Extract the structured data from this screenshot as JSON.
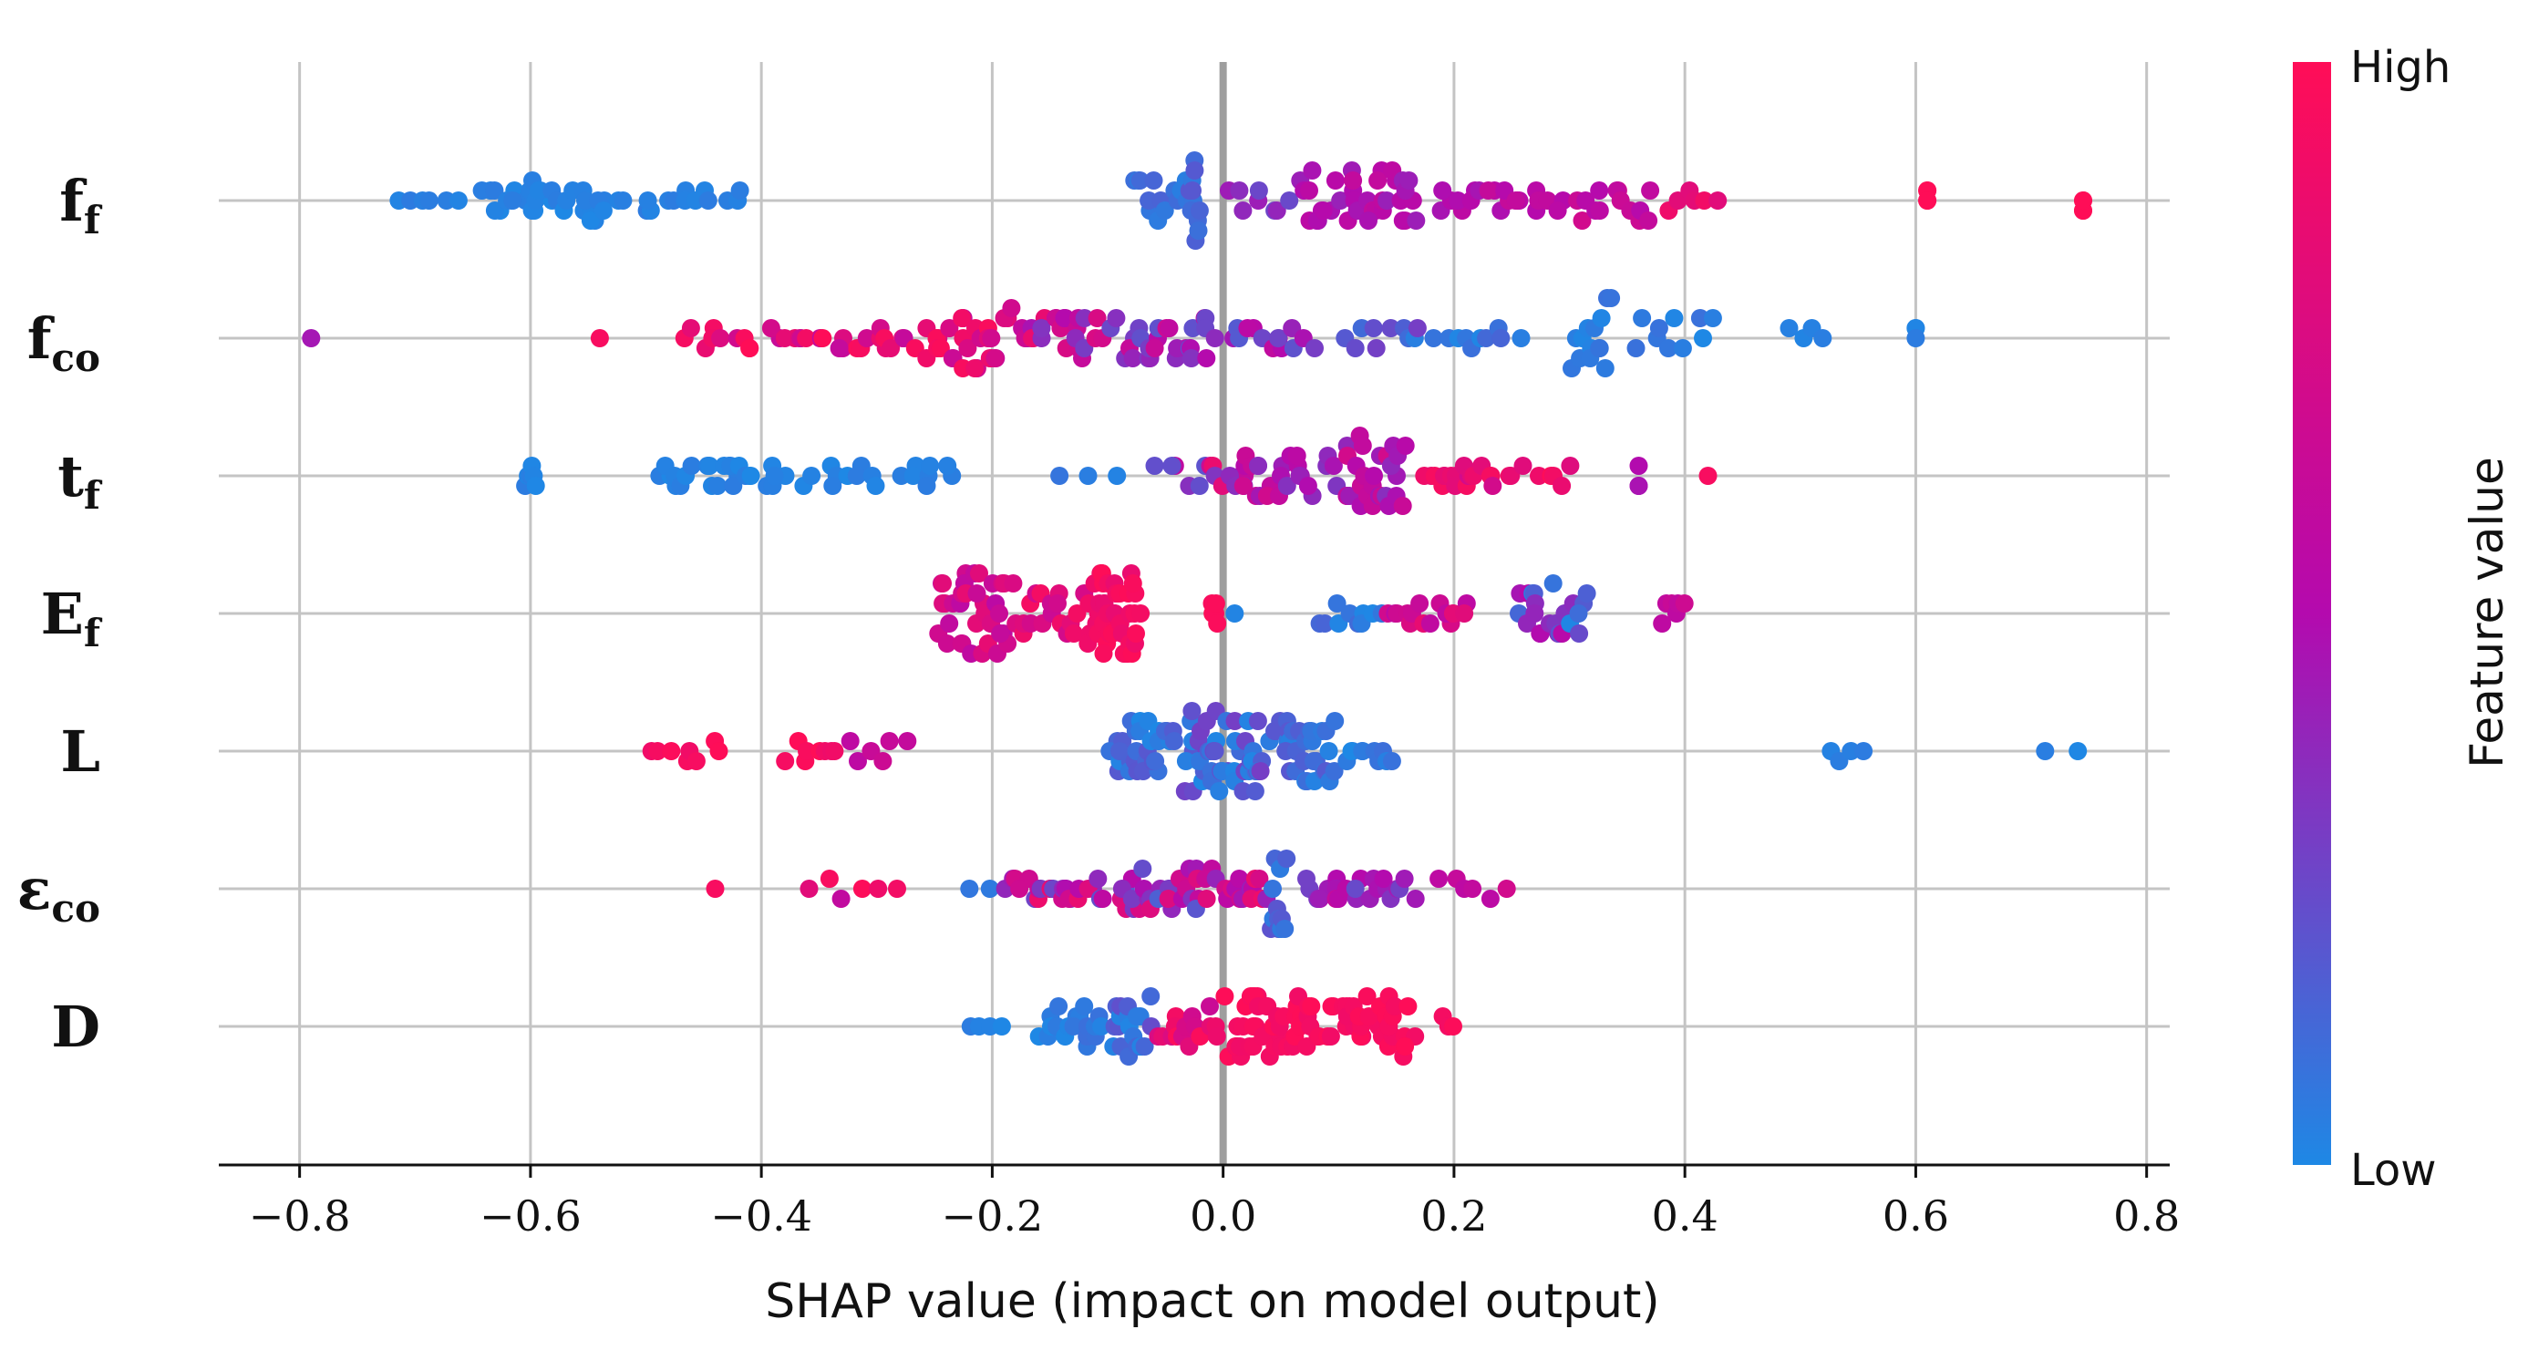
{
  "chart_data": {
    "type": "scatter",
    "subtype": "shap-beeswarm",
    "xlabel": "SHAP value (impact on model output)",
    "xlim": [
      -0.87,
      0.82
    ],
    "xticks": [
      -0.8,
      -0.6,
      -0.4,
      -0.2,
      0.0,
      0.2,
      0.4,
      0.6,
      0.8
    ],
    "xtick_labels": [
      "−0.8",
      "−0.6",
      "−0.4",
      "−0.2",
      "0.0",
      "0.2",
      "0.4",
      "0.6",
      "0.8"
    ],
    "grid": true,
    "colorbar": {
      "title": "Feature value",
      "high_label": "High",
      "low_label": "Low",
      "low_color": "#1E88E5",
      "mid_color": "#B40AAE",
      "high_color": "#FF0D57"
    },
    "features": [
      {
        "name": "ff",
        "base": "f",
        "sub": "f",
        "clusters": [
          {
            "x": [
              -0.72,
              -0.66
            ],
            "n": 6,
            "spread": 0.2,
            "c": [
              0,
              0.05
            ]
          },
          {
            "x": [
              -0.65,
              -0.52
            ],
            "n": 34,
            "spread": 1.0,
            "c": [
              0,
              0.05
            ]
          },
          {
            "x": [
              -0.52,
              -0.41
            ],
            "n": 14,
            "spread": 0.4,
            "c": [
              0,
              0.05
            ]
          },
          {
            "x": [
              -0.08,
              -0.02
            ],
            "n": 16,
            "spread": 1.0,
            "c": [
              0.02,
              0.15
            ]
          },
          {
            "x": [
              -0.03,
              -0.02
            ],
            "n": 10,
            "spread": 1.8,
            "c": [
              0.05,
              0.2
            ]
          },
          {
            "x": [
              0.0,
              0.06
            ],
            "n": 8,
            "spread": 0.4,
            "c": [
              0.2,
              0.45
            ]
          },
          {
            "x": [
              0.06,
              0.18
            ],
            "n": 38,
            "spread": 1.1,
            "c": [
              0.4,
              0.6
            ]
          },
          {
            "x": [
              0.18,
              0.3
            ],
            "n": 22,
            "spread": 0.6,
            "c": [
              0.45,
              0.62
            ]
          },
          {
            "x": [
              0.3,
              0.38
            ],
            "n": 14,
            "spread": 0.9,
            "c": [
              0.5,
              0.7
            ]
          },
          {
            "x": [
              0.38,
              0.43
            ],
            "n": 6,
            "spread": 0.4,
            "c": [
              0.8,
              1.0
            ]
          },
          {
            "x": [
              0.61,
              0.61
            ],
            "n": 4,
            "spread": 0.3,
            "c": [
              1,
              1
            ]
          },
          {
            "x": [
              0.745,
              0.745
            ],
            "n": 4,
            "spread": 0.3,
            "c": [
              1,
              1
            ]
          }
        ]
      },
      {
        "name": "fco",
        "base": "f",
        "sub": "co",
        "clusters": [
          {
            "x": [
              -0.79,
              -0.79
            ],
            "n": 1,
            "spread": 0,
            "c": [
              0.45,
              0.45
            ]
          },
          {
            "x": [
              -0.54,
              -0.54
            ],
            "n": 1,
            "spread": 0,
            "c": [
              0.95,
              0.95
            ]
          },
          {
            "x": [
              -0.47,
              -0.4
            ],
            "n": 10,
            "spread": 0.3,
            "c": [
              0.6,
              1.0
            ]
          },
          {
            "x": [
              -0.4,
              -0.26
            ],
            "n": 24,
            "spread": 0.5,
            "c": [
              0.55,
              1.0
            ]
          },
          {
            "x": [
              -0.26,
              -0.18
            ],
            "n": 30,
            "spread": 1.2,
            "c": [
              0.6,
              1.0
            ]
          },
          {
            "x": [
              -0.18,
              -0.1
            ],
            "n": 26,
            "spread": 0.9,
            "c": [
              0.3,
              0.9
            ]
          },
          {
            "x": [
              -0.1,
              0.0
            ],
            "n": 28,
            "spread": 1.0,
            "c": [
              0.2,
              0.7
            ]
          },
          {
            "x": [
              0.0,
              0.08
            ],
            "n": 14,
            "spread": 0.5,
            "c": [
              0.15,
              0.6
            ]
          },
          {
            "x": [
              0.1,
              0.18
            ],
            "n": 10,
            "spread": 0.3,
            "c": [
              0.0,
              0.3
            ]
          },
          {
            "x": [
              0.18,
              0.26
            ],
            "n": 10,
            "spread": 0.4,
            "c": [
              0.0,
              0.15
            ]
          },
          {
            "x": [
              0.3,
              0.34
            ],
            "n": 14,
            "spread": 1.6,
            "c": [
              0.0,
              0.1
            ]
          },
          {
            "x": [
              0.35,
              0.43
            ],
            "n": 10,
            "spread": 0.7,
            "c": [
              0.0,
              0.1
            ]
          },
          {
            "x": [
              0.49,
              0.52
            ],
            "n": 4,
            "spread": 0.3,
            "c": [
              0.0,
              0.05
            ]
          },
          {
            "x": [
              0.6,
              0.6
            ],
            "n": 3,
            "spread": 0.4,
            "c": [
              0.0,
              0.05
            ]
          }
        ]
      },
      {
        "name": "tf",
        "base": "t",
        "sub": "f",
        "clusters": [
          {
            "x": [
              -0.605,
              -0.595
            ],
            "n": 7,
            "spread": 0.5,
            "c": [
              0,
              0.05
            ]
          },
          {
            "x": [
              -0.5,
              -0.37
            ],
            "n": 26,
            "spread": 0.6,
            "c": [
              0,
              0.05
            ]
          },
          {
            "x": [
              -0.37,
              -0.22
            ],
            "n": 18,
            "spread": 0.35,
            "c": [
              0,
              0.05
            ]
          },
          {
            "x": [
              -0.15,
              -0.09
            ],
            "n": 3,
            "spread": 0.1,
            "c": [
              0.0,
              0.1
            ]
          },
          {
            "x": [
              -0.06,
              0.04
            ],
            "n": 14,
            "spread": 0.4,
            "c": [
              0.2,
              0.9
            ]
          },
          {
            "x": [
              0.0,
              0.1
            ],
            "n": 26,
            "spread": 1.0,
            "c": [
              0.3,
              0.7
            ]
          },
          {
            "x": [
              0.1,
              0.16
            ],
            "n": 28,
            "spread": 1.8,
            "c": [
              0.35,
              0.7
            ]
          },
          {
            "x": [
              0.17,
              0.24
            ],
            "n": 18,
            "spread": 0.5,
            "c": [
              0.7,
              1.0
            ]
          },
          {
            "x": [
              0.24,
              0.31
            ],
            "n": 8,
            "spread": 0.3,
            "c": [
              0.75,
              1.0
            ]
          },
          {
            "x": [
              0.36,
              0.36
            ],
            "n": 3,
            "spread": 0.3,
            "c": [
              0.45,
              0.5
            ]
          },
          {
            "x": [
              0.42,
              0.42
            ],
            "n": 1,
            "spread": 0,
            "c": [
              0.95,
              0.95
            ]
          }
        ]
      },
      {
        "name": "Ef",
        "base": "E",
        "sub": "f",
        "clusters": [
          {
            "x": [
              -0.25,
              -0.18
            ],
            "n": 38,
            "spread": 1.5,
            "c": [
              0.55,
              0.85
            ]
          },
          {
            "x": [
              -0.18,
              -0.12
            ],
            "n": 18,
            "spread": 0.7,
            "c": [
              0.65,
              0.95
            ]
          },
          {
            "x": [
              -0.12,
              -0.07
            ],
            "n": 46,
            "spread": 1.6,
            "c": [
              0.85,
              1.0
            ]
          },
          {
            "x": [
              -0.01,
              -0.005
            ],
            "n": 6,
            "spread": 0.6,
            "c": [
              0.95,
              1.0
            ]
          },
          {
            "x": [
              0.01,
              0.01
            ],
            "n": 1,
            "spread": 0,
            "c": [
              0.0,
              0.05
            ]
          },
          {
            "x": [
              0.08,
              0.14
            ],
            "n": 10,
            "spread": 0.6,
            "c": [
              0.0,
              0.15
            ]
          },
          {
            "x": [
              0.14,
              0.22
            ],
            "n": 16,
            "spread": 0.4,
            "c": [
              0.5,
              0.85
            ]
          },
          {
            "x": [
              0.25,
              0.32
            ],
            "n": 24,
            "spread": 1.3,
            "c": [
              0.0,
              0.6
            ]
          },
          {
            "x": [
              0.38,
              0.4
            ],
            "n": 6,
            "spread": 0.6,
            "c": [
              0.55,
              0.7
            ]
          }
        ]
      },
      {
        "name": "L",
        "base": "L",
        "sub": "",
        "clusters": [
          {
            "x": [
              -0.5,
              -0.43
            ],
            "n": 8,
            "spread": 0.3,
            "c": [
              0.9,
              1.0
            ]
          },
          {
            "x": [
              -0.38,
              -0.33
            ],
            "n": 8,
            "spread": 0.5,
            "c": [
              0.85,
              1.0
            ]
          },
          {
            "x": [
              -0.33,
              -0.27
            ],
            "n": 6,
            "spread": 0.3,
            "c": [
              0.55,
              0.75
            ]
          },
          {
            "x": [
              -0.1,
              -0.04
            ],
            "n": 30,
            "spread": 1.1,
            "c": [
              0.0,
              0.2
            ]
          },
          {
            "x": [
              -0.04,
              0.04
            ],
            "n": 50,
            "spread": 1.6,
            "c": [
              0.0,
              0.3
            ]
          },
          {
            "x": [
              0.04,
              0.1
            ],
            "n": 32,
            "spread": 1.3,
            "c": [
              0.0,
              0.2
            ]
          },
          {
            "x": [
              0.1,
              0.15
            ],
            "n": 10,
            "spread": 0.5,
            "c": [
              0.0,
              0.1
            ]
          },
          {
            "x": [
              0.525,
              0.555
            ],
            "n": 4,
            "spread": 0.3,
            "c": [
              0.0,
              0.05
            ]
          },
          {
            "x": [
              0.71,
              0.745
            ],
            "n": 2,
            "spread": 0,
            "c": [
              0.0,
              0.05
            ]
          }
        ]
      },
      {
        "name": "eco",
        "base": "ε",
        "sub": "co",
        "clusters": [
          {
            "x": [
              -0.44,
              -0.44
            ],
            "n": 1,
            "spread": 0,
            "c": [
              0.95,
              0.95
            ]
          },
          {
            "x": [
              -0.36,
              -0.28
            ],
            "n": 6,
            "spread": 0.3,
            "c": [
              0.5,
              1.0
            ]
          },
          {
            "x": [
              -0.22,
              -0.2
            ],
            "n": 2,
            "spread": 0,
            "c": [
              0.05,
              0.1
            ]
          },
          {
            "x": [
              -0.19,
              -0.1
            ],
            "n": 26,
            "spread": 0.6,
            "c": [
              0.2,
              0.95
            ]
          },
          {
            "x": [
              -0.1,
              0.0
            ],
            "n": 32,
            "spread": 0.8,
            "c": [
              0.15,
              0.8
            ]
          },
          {
            "x": [
              0.0,
              0.04
            ],
            "n": 14,
            "spread": 0.6,
            "c": [
              0.4,
              0.9
            ]
          },
          {
            "x": [
              0.04,
              0.055
            ],
            "n": 12,
            "spread": 1.6,
            "c": [
              0.05,
              0.25
            ]
          },
          {
            "x": [
              0.06,
              0.17
            ],
            "n": 26,
            "spread": 0.6,
            "c": [
              0.2,
              0.6
            ]
          },
          {
            "x": [
              0.18,
              0.25
            ],
            "n": 6,
            "spread": 0.4,
            "c": [
              0.55,
              0.7
            ]
          }
        ]
      },
      {
        "name": "D",
        "base": "D",
        "sub": "",
        "clusters": [
          {
            "x": [
              -0.22,
              -0.19
            ],
            "n": 4,
            "spread": 0.2,
            "c": [
              0.0,
              0.05
            ]
          },
          {
            "x": [
              -0.16,
              -0.1
            ],
            "n": 20,
            "spread": 0.9,
            "c": [
              0.0,
              0.1
            ]
          },
          {
            "x": [
              -0.1,
              -0.06
            ],
            "n": 20,
            "spread": 1.3,
            "c": [
              0.0,
              0.25
            ]
          },
          {
            "x": [
              -0.06,
              0.0
            ],
            "n": 16,
            "spread": 0.7,
            "c": [
              0.6,
              1.0
            ]
          },
          {
            "x": [
              0.0,
              0.08
            ],
            "n": 44,
            "spread": 1.4,
            "c": [
              0.9,
              1.0
            ]
          },
          {
            "x": [
              0.08,
              0.17
            ],
            "n": 34,
            "spread": 1.4,
            "c": [
              0.9,
              1.0
            ]
          },
          {
            "x": [
              0.19,
              0.2
            ],
            "n": 3,
            "spread": 0.5,
            "c": [
              0.9,
              1.0
            ]
          }
        ]
      }
    ]
  }
}
